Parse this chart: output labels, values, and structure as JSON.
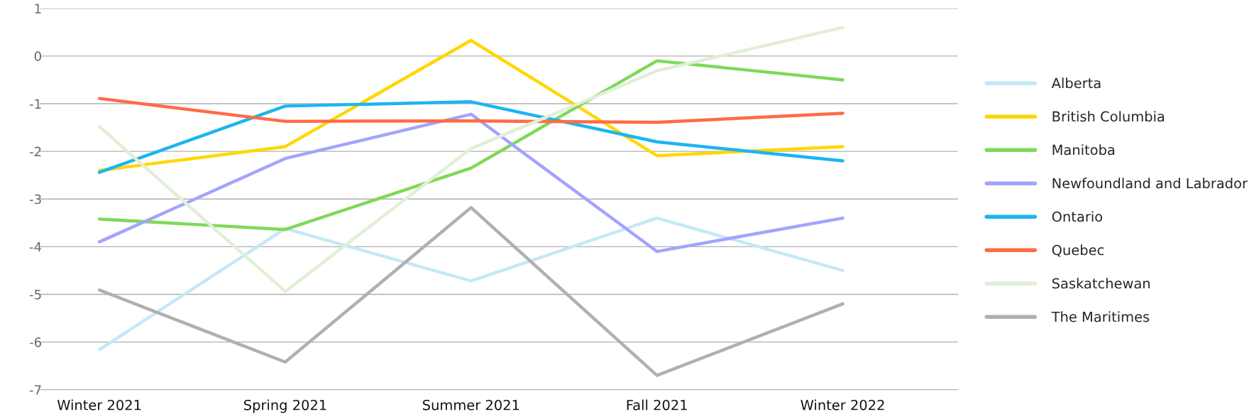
{
  "chart_data": {
    "type": "line",
    "categories": [
      "Winter 2021",
      "Spring 2021",
      "Summer 2021",
      "Fall 2021",
      "Winter 2022"
    ],
    "series": [
      {
        "name": "Alberta",
        "color": "#c5e8f7",
        "values": [
          -6.16,
          -3.62,
          -4.72,
          -3.4,
          -4.5
        ]
      },
      {
        "name": "British Columbia",
        "color": "#ffd700",
        "values": [
          -2.4,
          -1.9,
          0.33,
          -2.09,
          -1.9
        ]
      },
      {
        "name": "Manitoba",
        "color": "#7ed957",
        "values": [
          -3.42,
          -3.64,
          -2.35,
          -0.1,
          -0.5
        ]
      },
      {
        "name": "Newfoundland and Labrador",
        "color": "#a3a3ff",
        "values": [
          -3.9,
          -2.15,
          -1.22,
          -4.1,
          -3.4
        ]
      },
      {
        "name": "Ontario",
        "color": "#1cb5f0",
        "values": [
          -2.44,
          -1.05,
          -0.96,
          -1.8,
          -2.2
        ]
      },
      {
        "name": "Quebec",
        "color": "#ff6b45",
        "values": [
          -0.89,
          -1.37,
          -1.36,
          -1.39,
          -1.2
        ]
      },
      {
        "name": "Saskatchewan",
        "color": "#e0efd6",
        "values": [
          -1.48,
          -4.94,
          -1.94,
          -0.31,
          0.6
        ]
      },
      {
        "name": "The Maritimes",
        "color": "#b0b0b0",
        "values": [
          -4.91,
          -6.42,
          -3.18,
          -6.7,
          -5.2
        ]
      }
    ],
    "ylim": [
      -7,
      1
    ],
    "yticks": [
      -7,
      -6,
      -5,
      -4,
      -3,
      -2,
      -1,
      0,
      1
    ],
    "grid": "y",
    "legend": "right",
    "marker": "none",
    "line_style": "solid"
  }
}
